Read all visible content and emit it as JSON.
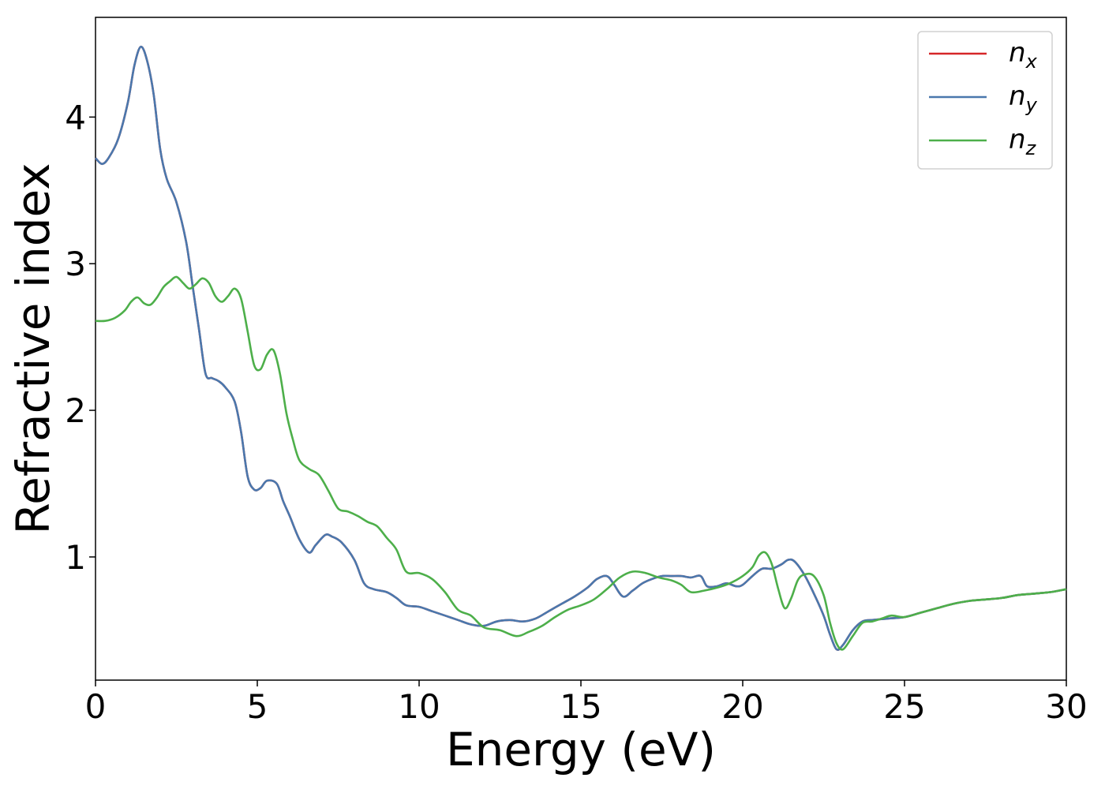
{
  "chart_data": {
    "type": "line",
    "title": "",
    "xlabel": "Energy (eV)",
    "ylabel": "Refractive index",
    "xlim": [
      0,
      30
    ],
    "ylim": [
      0.16,
      4.68
    ],
    "xticks": [
      0,
      5,
      10,
      15,
      20,
      25,
      30
    ],
    "yticks": [
      1,
      2,
      3,
      4
    ],
    "grid": false,
    "legend_position": "top-right",
    "series": [
      {
        "name": "n_x",
        "label_base": "n",
        "label_sub": "x",
        "color": "#d62728",
        "x": [
          0,
          0.2,
          0.4,
          0.7,
          1.0,
          1.2,
          1.4,
          1.6,
          1.8,
          2.0,
          2.2,
          2.5,
          2.8,
          3.0,
          3.2,
          3.4,
          3.6,
          3.8,
          4.0,
          4.3,
          4.5,
          4.7,
          4.9,
          5.1,
          5.3,
          5.6,
          5.8,
          6.0,
          6.3,
          6.6,
          6.8,
          7.1,
          7.3,
          7.6,
          8.0,
          8.3,
          8.6,
          9.0,
          9.3,
          9.6,
          10.0,
          10.4,
          10.8,
          11.2,
          11.6,
          12.0,
          12.4,
          12.8,
          13.2,
          13.6,
          14.0,
          14.4,
          14.8,
          15.2,
          15.5,
          15.8,
          16.0,
          16.3,
          16.6,
          16.9,
          17.2,
          17.5,
          17.8,
          18.1,
          18.4,
          18.7,
          18.9,
          19.2,
          19.5,
          19.8,
          20.0,
          20.3,
          20.6,
          20.9,
          21.2,
          21.4,
          21.6,
          21.9,
          22.2,
          22.5,
          22.7,
          22.9,
          23.1,
          23.4,
          23.7,
          24.0,
          24.5,
          25.0,
          25.5,
          26.0,
          26.5,
          27.0,
          27.5,
          28.0,
          28.5,
          29.0,
          29.5,
          30.0
        ],
        "y": [
          3.72,
          3.68,
          3.72,
          3.85,
          4.1,
          4.35,
          4.48,
          4.38,
          4.15,
          3.78,
          3.58,
          3.42,
          3.15,
          2.85,
          2.55,
          2.25,
          2.22,
          2.2,
          2.16,
          2.06,
          1.85,
          1.55,
          1.46,
          1.47,
          1.52,
          1.5,
          1.38,
          1.28,
          1.12,
          1.03,
          1.08,
          1.15,
          1.14,
          1.1,
          0.98,
          0.82,
          0.78,
          0.76,
          0.72,
          0.67,
          0.66,
          0.63,
          0.6,
          0.57,
          0.54,
          0.53,
          0.56,
          0.57,
          0.56,
          0.58,
          0.63,
          0.68,
          0.73,
          0.79,
          0.85,
          0.87,
          0.82,
          0.73,
          0.77,
          0.82,
          0.85,
          0.87,
          0.87,
          0.87,
          0.86,
          0.87,
          0.8,
          0.8,
          0.82,
          0.8,
          0.81,
          0.87,
          0.92,
          0.92,
          0.95,
          0.98,
          0.97,
          0.88,
          0.75,
          0.6,
          0.47,
          0.37,
          0.4,
          0.5,
          0.56,
          0.57,
          0.58,
          0.59,
          0.62,
          0.65,
          0.68,
          0.7,
          0.71,
          0.72,
          0.74,
          0.75,
          0.76,
          0.78
        ]
      },
      {
        "name": "n_y",
        "label_base": "n",
        "label_sub": "y",
        "color": "#4a78ad",
        "x": [
          0,
          0.2,
          0.4,
          0.7,
          1.0,
          1.2,
          1.4,
          1.6,
          1.8,
          2.0,
          2.2,
          2.5,
          2.8,
          3.0,
          3.2,
          3.4,
          3.6,
          3.8,
          4.0,
          4.3,
          4.5,
          4.7,
          4.9,
          5.1,
          5.3,
          5.6,
          5.8,
          6.0,
          6.3,
          6.6,
          6.8,
          7.1,
          7.3,
          7.6,
          8.0,
          8.3,
          8.6,
          9.0,
          9.3,
          9.6,
          10.0,
          10.4,
          10.8,
          11.2,
          11.6,
          12.0,
          12.4,
          12.8,
          13.2,
          13.6,
          14.0,
          14.4,
          14.8,
          15.2,
          15.5,
          15.8,
          16.0,
          16.3,
          16.6,
          16.9,
          17.2,
          17.5,
          17.8,
          18.1,
          18.4,
          18.7,
          18.9,
          19.2,
          19.5,
          19.8,
          20.0,
          20.3,
          20.6,
          20.9,
          21.2,
          21.4,
          21.6,
          21.9,
          22.2,
          22.5,
          22.7,
          22.9,
          23.1,
          23.4,
          23.7,
          24.0,
          24.5,
          25.0,
          25.5,
          26.0,
          26.5,
          27.0,
          27.5,
          28.0,
          28.5,
          29.0,
          29.5,
          30.0
        ],
        "y": [
          3.72,
          3.68,
          3.72,
          3.85,
          4.1,
          4.35,
          4.48,
          4.38,
          4.15,
          3.78,
          3.58,
          3.42,
          3.15,
          2.85,
          2.55,
          2.25,
          2.22,
          2.2,
          2.16,
          2.06,
          1.85,
          1.55,
          1.46,
          1.47,
          1.52,
          1.5,
          1.38,
          1.28,
          1.12,
          1.03,
          1.08,
          1.15,
          1.14,
          1.1,
          0.98,
          0.82,
          0.78,
          0.76,
          0.72,
          0.67,
          0.66,
          0.63,
          0.6,
          0.57,
          0.54,
          0.53,
          0.56,
          0.57,
          0.56,
          0.58,
          0.63,
          0.68,
          0.73,
          0.79,
          0.85,
          0.87,
          0.82,
          0.73,
          0.77,
          0.82,
          0.85,
          0.87,
          0.87,
          0.87,
          0.86,
          0.87,
          0.8,
          0.8,
          0.82,
          0.8,
          0.81,
          0.87,
          0.92,
          0.92,
          0.95,
          0.98,
          0.97,
          0.88,
          0.75,
          0.6,
          0.47,
          0.37,
          0.4,
          0.5,
          0.56,
          0.57,
          0.58,
          0.59,
          0.62,
          0.65,
          0.68,
          0.7,
          0.71,
          0.72,
          0.74,
          0.75,
          0.76,
          0.78
        ]
      },
      {
        "name": "n_z",
        "label_base": "n",
        "label_sub": "z",
        "color": "#4daf4a",
        "x": [
          0,
          0.3,
          0.6,
          0.9,
          1.1,
          1.3,
          1.5,
          1.7,
          1.9,
          2.1,
          2.3,
          2.5,
          2.7,
          2.9,
          3.1,
          3.3,
          3.5,
          3.7,
          3.9,
          4.1,
          4.3,
          4.5,
          4.7,
          4.9,
          5.1,
          5.3,
          5.5,
          5.7,
          5.9,
          6.1,
          6.3,
          6.6,
          6.9,
          7.2,
          7.5,
          7.8,
          8.1,
          8.4,
          8.7,
          9.0,
          9.3,
          9.6,
          10.0,
          10.4,
          10.8,
          11.2,
          11.6,
          12.0,
          12.5,
          13.0,
          13.4,
          13.8,
          14.2,
          14.6,
          15.0,
          15.4,
          15.8,
          16.2,
          16.6,
          17.0,
          17.4,
          17.8,
          18.1,
          18.4,
          18.8,
          19.2,
          19.6,
          20.0,
          20.3,
          20.5,
          20.7,
          20.9,
          21.1,
          21.3,
          21.5,
          21.7,
          21.9,
          22.2,
          22.5,
          22.7,
          22.9,
          23.1,
          23.4,
          23.7,
          24.0,
          24.3,
          24.6,
          25.0,
          25.5,
          26.0,
          26.5,
          27.0,
          27.5,
          28.0,
          28.5,
          29.0,
          29.5,
          30.0
        ],
        "y": [
          2.61,
          2.61,
          2.63,
          2.68,
          2.74,
          2.77,
          2.73,
          2.72,
          2.77,
          2.84,
          2.88,
          2.91,
          2.87,
          2.83,
          2.86,
          2.9,
          2.87,
          2.78,
          2.74,
          2.78,
          2.83,
          2.76,
          2.54,
          2.31,
          2.28,
          2.38,
          2.41,
          2.25,
          1.98,
          1.8,
          1.66,
          1.6,
          1.56,
          1.45,
          1.33,
          1.31,
          1.28,
          1.24,
          1.21,
          1.13,
          1.05,
          0.9,
          0.89,
          0.85,
          0.76,
          0.64,
          0.6,
          0.52,
          0.5,
          0.46,
          0.49,
          0.53,
          0.59,
          0.64,
          0.67,
          0.71,
          0.78,
          0.86,
          0.9,
          0.89,
          0.86,
          0.84,
          0.81,
          0.76,
          0.77,
          0.79,
          0.82,
          0.87,
          0.93,
          1.01,
          1.03,
          0.95,
          0.78,
          0.65,
          0.72,
          0.84,
          0.88,
          0.87,
          0.74,
          0.55,
          0.41,
          0.37,
          0.46,
          0.55,
          0.56,
          0.58,
          0.6,
          0.59,
          0.62,
          0.65,
          0.68,
          0.7,
          0.71,
          0.72,
          0.74,
          0.75,
          0.76,
          0.78
        ]
      }
    ]
  }
}
